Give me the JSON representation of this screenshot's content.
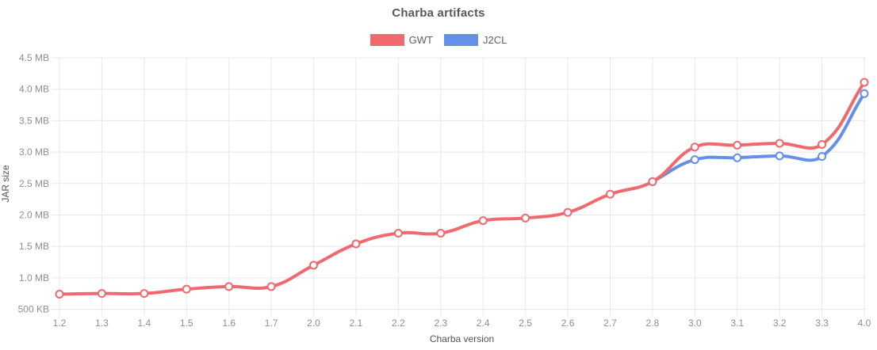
{
  "title": "Charba artifacts",
  "legend": {
    "items": [
      {
        "label": "GWT",
        "color": "#f0696e"
      },
      {
        "label": "J2CL",
        "color": "#6590e7"
      }
    ]
  },
  "chart_data": {
    "type": "line",
    "title": "Charba artifacts",
    "xlabel": "Charba version",
    "ylabel": "JAR size",
    "categories": [
      "1.2",
      "1.3",
      "1.4",
      "1.5",
      "1.6",
      "1.7",
      "2.0",
      "2.1",
      "2.2",
      "2.3",
      "2.4",
      "2.5",
      "2.6",
      "2.7",
      "2.8",
      "3.0",
      "3.1",
      "3.2",
      "3.3",
      "4.0"
    ],
    "series": [
      {
        "name": "GWT",
        "color": "#f0696e",
        "values": [
          0.74,
          0.75,
          0.75,
          0.82,
          0.86,
          0.86,
          1.2,
          1.54,
          1.71,
          1.71,
          1.91,
          1.95,
          2.04,
          2.33,
          2.53,
          3.08,
          3.11,
          3.14,
          3.12,
          4.11
        ]
      },
      {
        "name": "J2CL",
        "color": "#6590e7",
        "values": [
          null,
          null,
          null,
          null,
          null,
          null,
          null,
          null,
          null,
          null,
          null,
          null,
          null,
          null,
          2.53,
          2.88,
          2.91,
          2.94,
          2.93,
          3.93
        ]
      }
    ],
    "y_ticks": [
      {
        "value": 0.5,
        "label": "500 KB"
      },
      {
        "value": 1.0,
        "label": "1.0 MB"
      },
      {
        "value": 1.5,
        "label": "1.5 MB"
      },
      {
        "value": 2.0,
        "label": "2.0 MB"
      },
      {
        "value": 2.5,
        "label": "2.5 MB"
      },
      {
        "value": 3.0,
        "label": "3.0 MB"
      },
      {
        "value": 3.5,
        "label": "3.5 MB"
      },
      {
        "value": 4.0,
        "label": "4.0 MB"
      },
      {
        "value": 4.5,
        "label": "4.5 MB"
      }
    ],
    "ylim": [
      0.5,
      4.5
    ],
    "unit": "MB",
    "grid": true,
    "legend_position": "top",
    "line_tension": 0.4,
    "grid_color": "#e7e7e7",
    "point_style": "circle-white-fill"
  }
}
